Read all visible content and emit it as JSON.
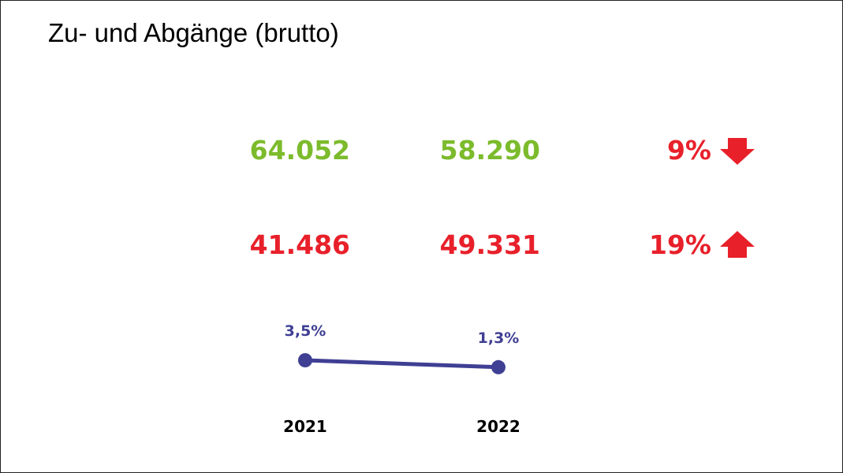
{
  "slide": {
    "title": "Zu- und Abgänge (brutto)"
  },
  "rows": [
    {
      "value_2021": "64.052",
      "value_2022": "58.290",
      "change": "9%",
      "direction": "down",
      "value_color": "#7cbb2c",
      "change_color": "#e8202a"
    },
    {
      "value_2021": "41.486",
      "value_2022": "49.331",
      "change": "19%",
      "direction": "up",
      "value_color": "#e8202a",
      "change_color": "#e8202a"
    }
  ],
  "chart_data": {
    "type": "line",
    "categories": [
      "2021",
      "2022"
    ],
    "series": [
      {
        "values": [
          3.5,
          1.3
        ],
        "labels": [
          "3,5%",
          "1,3%"
        ],
        "color": "#3f3f94"
      }
    ]
  }
}
